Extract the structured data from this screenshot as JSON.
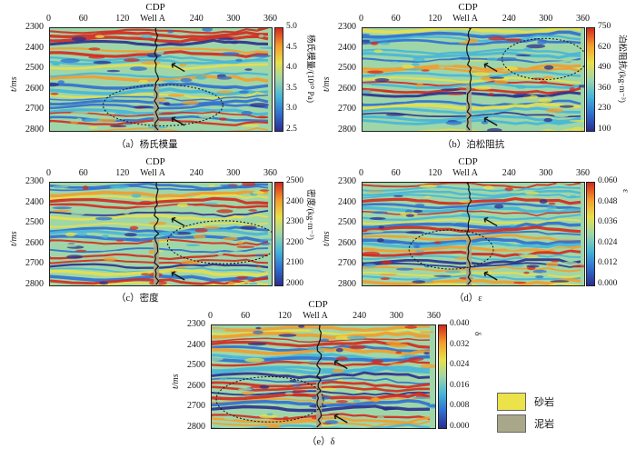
{
  "common": {
    "cdp_label": "CDP",
    "well_label": "Well A",
    "x_ticks": [
      "0",
      "60",
      "120",
      "240",
      "300",
      "360"
    ],
    "y_ticks": [
      "2300",
      "2400",
      "2500",
      "2600",
      "2700",
      "2800"
    ],
    "y_label": "t/ms"
  },
  "panels": [
    {
      "id": "a",
      "caption": "（a）杨氏模量",
      "cbar_ticks": [
        "5.0",
        "4.5",
        "4.0",
        "3.5",
        "3.0",
        "2.5"
      ],
      "cbar_label": "杨氏模量/(10¹⁰ Pa)"
    },
    {
      "id": "b",
      "caption": "（b）泊松阻抗",
      "cbar_ticks": [
        "750",
        "620",
        "490",
        "360",
        "230",
        "100"
      ],
      "cbar_label": "泊松阻抗/(kg·m⁻³)"
    },
    {
      "id": "c",
      "caption": "（c）密度",
      "cbar_ticks": [
        "2500",
        "2400",
        "2300",
        "2200",
        "2100",
        "2000"
      ],
      "cbar_label": "密度/(kg·m⁻³)"
    },
    {
      "id": "d",
      "caption": "（d）ε",
      "cbar_ticks": [
        "0.060",
        "0.048",
        "0.036",
        "0.024",
        "0.012",
        "0.000"
      ],
      "cbar_label": "ε"
    },
    {
      "id": "e",
      "caption": "（e）δ",
      "cbar_ticks": [
        "0.040",
        "0.032",
        "0.024",
        "0.016",
        "0.008",
        "0.000"
      ],
      "cbar_label": "δ"
    }
  ],
  "legend": [
    {
      "label": "砂岩",
      "color": "#ece24a"
    },
    {
      "label": "泥岩",
      "color": "#a9a78a"
    }
  ],
  "colors": {
    "colormap": [
      "#2b2d8f",
      "#2f6fd0",
      "#46b6d8",
      "#9fd6a8",
      "#e8e04a",
      "#f39c2b",
      "#d4281e"
    ]
  }
}
